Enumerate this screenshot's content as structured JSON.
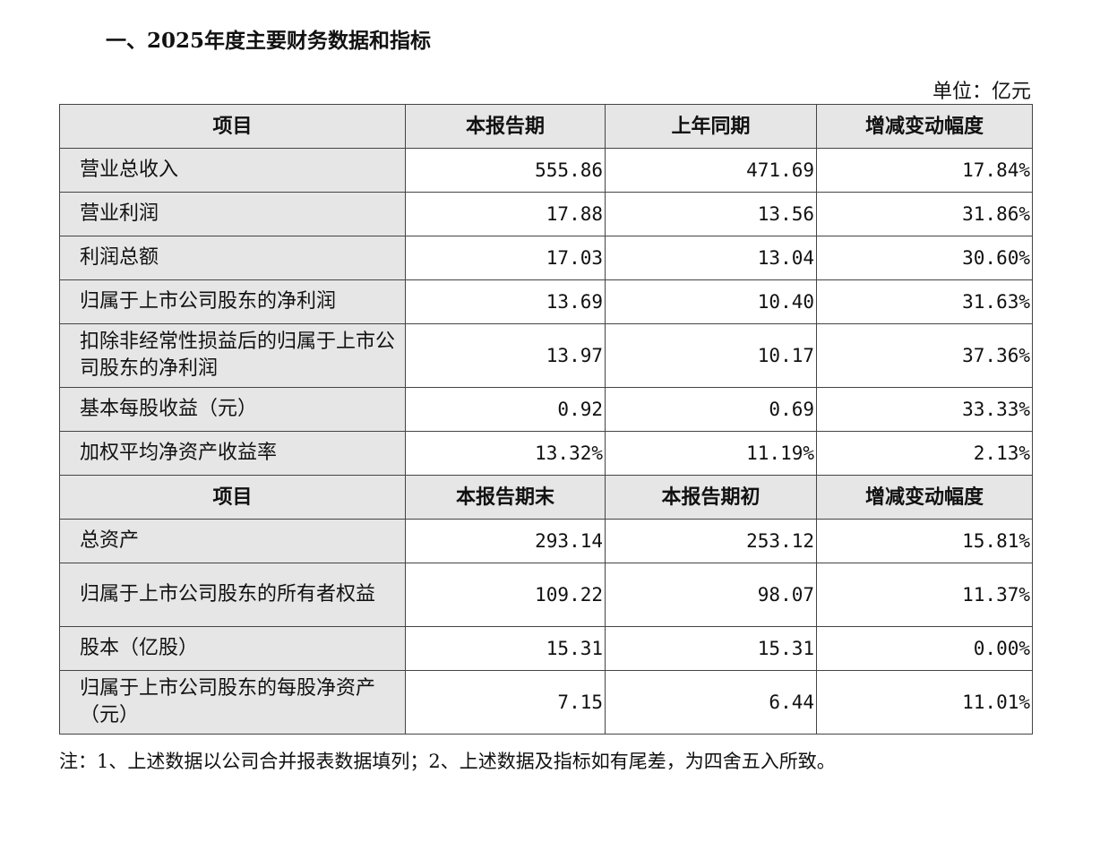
{
  "title": "一、2025年度主要财务数据和指标",
  "unit": "单位：亿元",
  "section1": {
    "headers": [
      "项目",
      "本报告期",
      "上年同期",
      "增减变动幅度"
    ],
    "rows": [
      {
        "item": "营业总收入",
        "a": "555.86",
        "b": "471.69",
        "c": "17.84%"
      },
      {
        "item": "营业利润",
        "a": "17.88",
        "b": "13.56",
        "c": "31.86%"
      },
      {
        "item": "利润总额",
        "a": "17.03",
        "b": "13.04",
        "c": "30.60%"
      },
      {
        "item": "归属于上市公司股东的净利润",
        "a": "13.69",
        "b": "10.40",
        "c": "31.63%"
      },
      {
        "item": "扣除非经常性损益后的归属于上市公司股东的净利润",
        "a": "13.97",
        "b": "10.17",
        "c": "37.36%"
      },
      {
        "item": "基本每股收益（元）",
        "a": "0.92",
        "b": "0.69",
        "c": "33.33%"
      },
      {
        "item": "加权平均净资产收益率",
        "a": "13.32%",
        "b": "11.19%",
        "c": "2.13%"
      }
    ]
  },
  "section2": {
    "headers": [
      "项目",
      "本报告期末",
      "本报告期初",
      "增减变动幅度"
    ],
    "rows": [
      {
        "item": "总资产",
        "a": "293.14",
        "b": "253.12",
        "c": "15.81%"
      },
      {
        "item": "归属于上市公司股东的所有者权益",
        "a": "109.22",
        "b": "98.07",
        "c": "11.37%"
      },
      {
        "item": "股本（亿股）",
        "a": "15.31",
        "b": "15.31",
        "c": "0.00%"
      },
      {
        "item": "归属于上市公司股东的每股净资产（元）",
        "a": "7.15",
        "b": "6.44",
        "c": "11.01%"
      }
    ]
  },
  "note": "注：1、上述数据以公司合并报表数据填列；2、上述数据及指标如有尾差，为四舍五入所致。"
}
